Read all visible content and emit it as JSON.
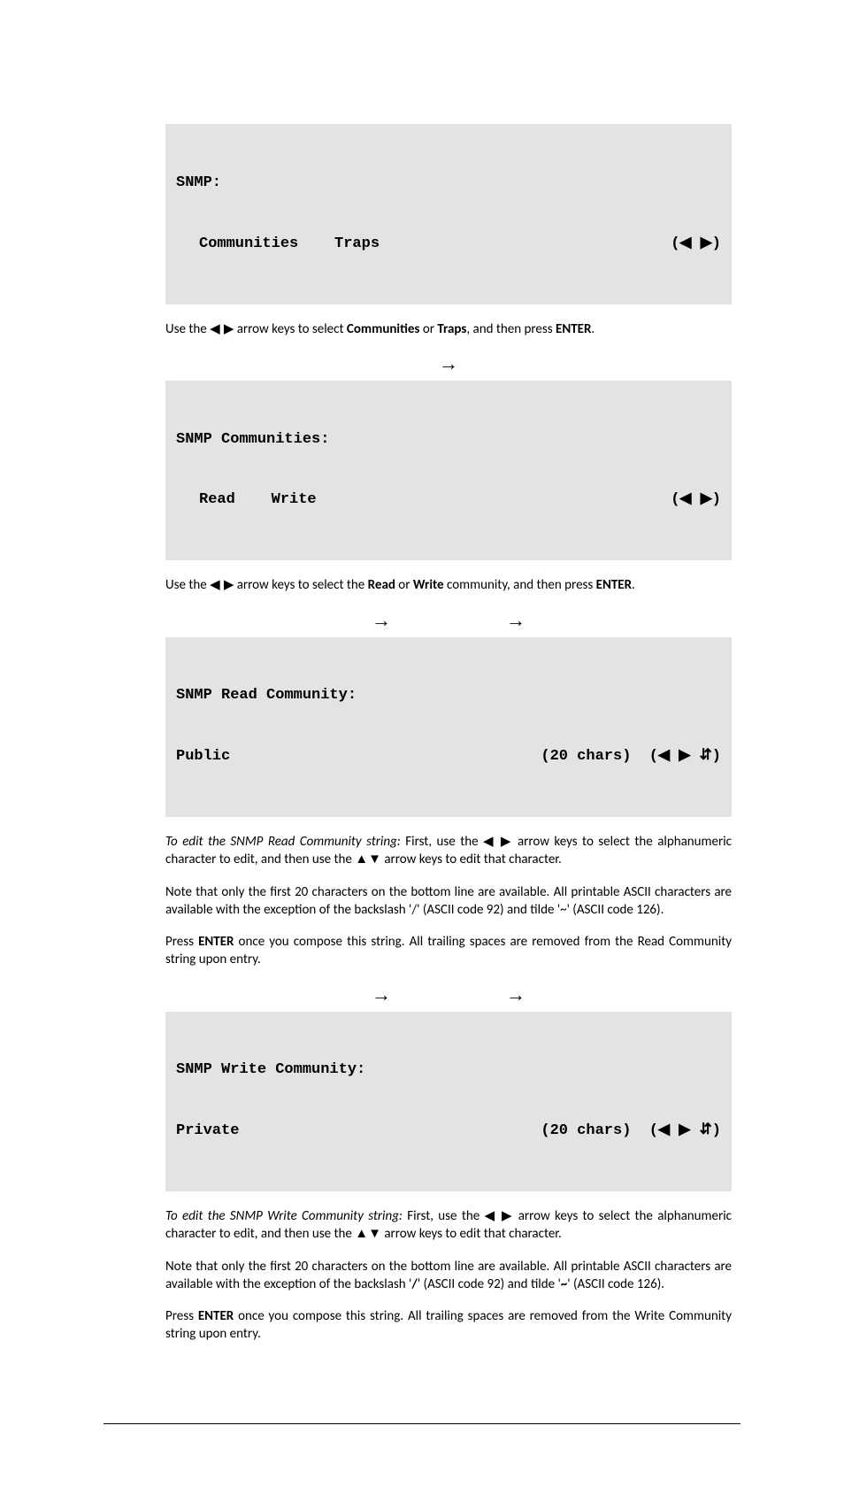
{
  "glyph": {
    "tri_left": "◀",
    "tri_right": "▶",
    "tri_up": "▲",
    "tri_down": "▼",
    "arrow_right": "→",
    "updown_small": "▲▼"
  },
  "lcd1": {
    "line1": "SNMP:",
    "line2_left": "Communities    Traps",
    "nav": "(◀ ▶)"
  },
  "para1": {
    "pre": "Use the ",
    "arrows": "◀ ▶",
    "mid": " arrow keys  to select ",
    "b1": "Communities",
    "or": " or ",
    "b2": "Traps",
    "mid2": ", and then press ",
    "b3": "ENTER",
    "end": "."
  },
  "lcd2": {
    "line1": "SNMP Communities:",
    "line2_left": "Read    Write",
    "nav": "(◀ ▶)"
  },
  "para2": {
    "pre": "Use the ",
    "arrows": "◀ ▶",
    "mid": " arrow keys to select the ",
    "b1": "Read",
    "or": " or ",
    "b2": "Write",
    "mid2": " community, and then press ",
    "b3": "ENTER",
    "end": "."
  },
  "lcd3": {
    "line1": "SNMP Read Community:",
    "line2_left": "Public",
    "line2_right": "(20 chars)  (◀ ▶ ⇵)"
  },
  "read_edit": {
    "lead_i": "To edit the SNMP Read Community string:",
    "lead_rest": " First, use the ",
    "arrows1": "◀ ▶",
    "mid1": " arrow keys to select the alphanumeric character to edit, and then use the ",
    "arrows2": "▲▼",
    "mid2": "  arrow keys to edit that character."
  },
  "note_text": "Note that only the first 20 characters on the bottom line are available. All printable ASCII characters are available with the exception of the backslash '/' (ASCII code 92) and tilde '~' (ASCII code 126).",
  "enter_read": {
    "pre": "Press ",
    "b": "ENTER",
    "post": " once you compose this string. All trailing spaces are removed from the Read Community string upon entry."
  },
  "lcd4": {
    "line1": "SNMP Write Community:",
    "line2_left": "Private",
    "line2_right": "(20 chars)  (◀ ▶ ⇵)"
  },
  "write_edit": {
    "lead_i": "To edit the SNMP Write Community string:",
    "lead_rest": " First, use the ",
    "arrows1": "◀ ▶",
    "mid1": " arrow keys to select the alphanumeric character to edit, and then use the ",
    "arrows2": "▲▼",
    "mid2": "  arrow keys to edit that character."
  },
  "note_text2": {
    "p1": "Note that only the first 20 characters on the bottom line are available. All printable ASCII characters are available with the exception of the backslash '",
    "b1": "/",
    "p2": "' (ASCII code 92) and tilde '",
    "b2": "~",
    "p3": "' (ASCII code 126)."
  },
  "enter_write": {
    "pre": "Press ",
    "b": "ENTER",
    "post": " once you compose this string. All trailing spaces are removed from the Write Community string upon entry."
  }
}
